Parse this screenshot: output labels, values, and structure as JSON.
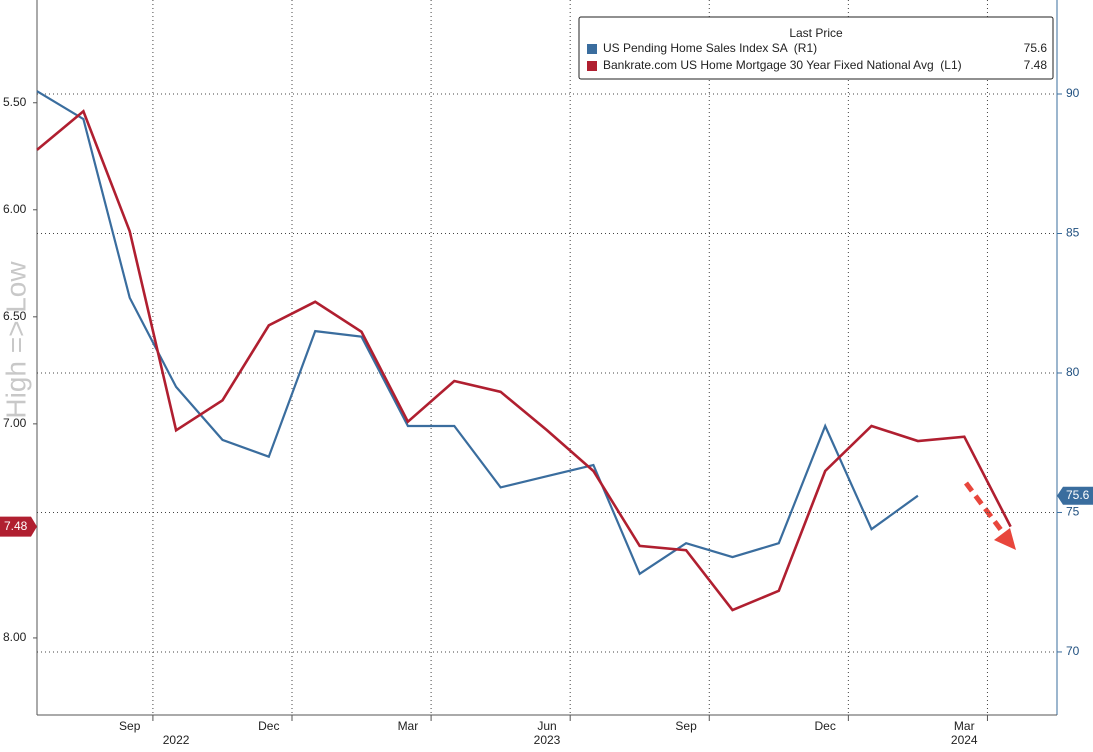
{
  "chart_data": {
    "type": "line",
    "annotation": "High => Low",
    "legend_title": "Last Price",
    "xlim": [
      "2022-07",
      "2024-05"
    ],
    "xticks": [
      {
        "value": "2022-09",
        "label": "Sep"
      },
      {
        "value": "2022-12",
        "label": "Dec"
      },
      {
        "value": "2023-03",
        "label": "Mar"
      },
      {
        "value": "2023-06",
        "label": "Jun"
      },
      {
        "value": "2023-09",
        "label": "Sep"
      },
      {
        "value": "2023-12",
        "label": "Dec"
      },
      {
        "value": "2024-03",
        "label": "Mar"
      }
    ],
    "year_labels": [
      {
        "value": "2022-10",
        "label": "2022"
      },
      {
        "value": "2023-06",
        "label": "2023"
      },
      {
        "value": "2024-03",
        "label": "2024"
      }
    ],
    "ylim": [
      8.36,
      5.02
    ],
    "yticks": [
      {
        "value": 5.5,
        "label": "5.50"
      },
      {
        "value": 6,
        "label": "6.00"
      },
      {
        "value": 6.5,
        "label": "6.50"
      },
      {
        "value": 7,
        "label": "7.00"
      },
      {
        "value": 8,
        "label": "8.00"
      }
    ],
    "y2lim": [
      67.74,
      93.37
    ],
    "y2ticks": [
      70,
      75,
      80,
      85,
      90
    ],
    "grid": true,
    "series": [
      {
        "name": "US Pending Home Sales Index SA  (R1)",
        "color": "#3a6d9e",
        "axis": "y2",
        "last_value": 75.6,
        "x": [
          "2022-07",
          "2022-08",
          "2022-09",
          "2022-10",
          "2022-11",
          "2022-12",
          "2023-01",
          "2023-02",
          "2023-03",
          "2023-04",
          "2023-05",
          "2023-06",
          "2023-07",
          "2023-08",
          "2023-09",
          "2023-10",
          "2023-11",
          "2023-12",
          "2024-01",
          "2024-02"
        ],
        "values": [
          90.1,
          89.1,
          82.7,
          79.5,
          77.6,
          77.0,
          81.5,
          81.3,
          78.1,
          78.1,
          75.9,
          76.3,
          76.7,
          72.8,
          73.9,
          73.4,
          73.9,
          78.1,
          74.4,
          75.6
        ]
      },
      {
        "name": "Bankrate.com US Home Mortgage 30 Year Fixed National Avg  (L1)",
        "color": "#b01f30",
        "axis": "y",
        "last_value": 7.48,
        "x": [
          "2022-07",
          "2022-08",
          "2022-09",
          "2022-10",
          "2022-11",
          "2022-12",
          "2023-01",
          "2023-02",
          "2023-03",
          "2023-04",
          "2023-05",
          "2023-06",
          "2023-07",
          "2023-08",
          "2023-09",
          "2023-10",
          "2023-11",
          "2023-12",
          "2024-01",
          "2024-02",
          "2024-03",
          "2024-04"
        ],
        "values": [
          5.72,
          5.54,
          6.1,
          7.03,
          6.89,
          6.54,
          6.43,
          6.57,
          6.99,
          6.8,
          6.85,
          7.03,
          7.22,
          7.57,
          7.59,
          7.87,
          7.78,
          7.22,
          7.01,
          7.08,
          7.06,
          7.48
        ]
      }
    ]
  }
}
